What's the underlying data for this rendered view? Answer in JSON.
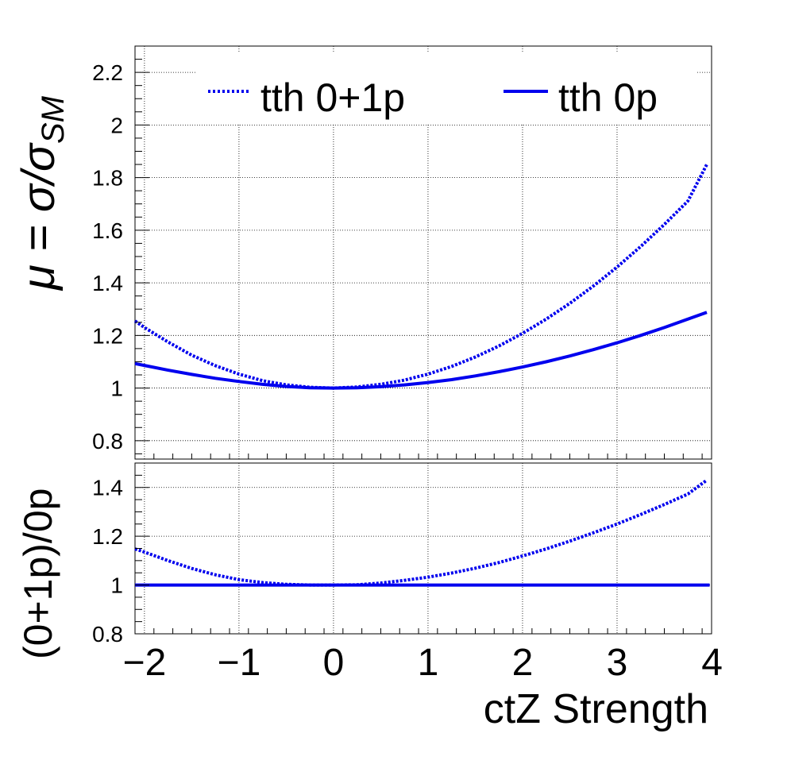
{
  "chart_data": [
    {
      "panel": "main",
      "type": "line",
      "ylabel": "μ = σ/σ_SM",
      "ylabel_main": "μ = σ/σ",
      "ylabel_sub": "SM",
      "xlim": [
        -2.1,
        4.0
      ],
      "ylim": [
        0.73,
        2.3
      ],
      "grid": true,
      "y_ticks": [
        0.8,
        1,
        1.2,
        1.4,
        1.6,
        1.8,
        2,
        2.2
      ],
      "y_tick_labels": [
        "0.8",
        "1",
        "1.2",
        "1.4",
        "1.6",
        "1.8",
        "2",
        "2.2"
      ],
      "legend_position": "top",
      "series": [
        {
          "name": "tth 0+1p",
          "style": "dotted",
          "color": "#0000ee",
          "x": [
            -2.1,
            -2.0,
            -1.75,
            -1.5,
            -1.25,
            -1.0,
            -0.75,
            -0.5,
            -0.25,
            0.0,
            0.25,
            0.5,
            0.75,
            1.0,
            1.25,
            1.5,
            1.75,
            2.0,
            2.25,
            2.5,
            2.75,
            3.0,
            3.25,
            3.5,
            3.75,
            3.95
          ],
          "y": [
            1.255,
            1.23,
            1.175,
            1.125,
            1.085,
            1.053,
            1.028,
            1.012,
            1.003,
            1.0,
            1.004,
            1.014,
            1.03,
            1.053,
            1.082,
            1.118,
            1.16,
            1.208,
            1.262,
            1.322,
            1.388,
            1.46,
            1.538,
            1.622,
            1.711,
            1.85
          ]
        },
        {
          "name": "tth 0p",
          "style": "solid",
          "color": "#0000ee",
          "x": [
            -2.1,
            -2.0,
            -1.75,
            -1.5,
            -1.25,
            -1.0,
            -0.75,
            -0.5,
            -0.25,
            0.0,
            0.25,
            0.5,
            0.75,
            1.0,
            1.25,
            1.5,
            1.75,
            2.0,
            2.25,
            2.5,
            2.75,
            3.0,
            3.25,
            3.5,
            3.75,
            3.95
          ],
          "y": [
            1.093,
            1.086,
            1.068,
            1.052,
            1.037,
            1.025,
            1.014,
            1.006,
            1.001,
            1.0,
            1.001,
            1.005,
            1.012,
            1.021,
            1.032,
            1.046,
            1.062,
            1.08,
            1.1,
            1.122,
            1.146,
            1.172,
            1.2,
            1.23,
            1.262,
            1.288
          ]
        }
      ]
    },
    {
      "panel": "ratio",
      "type": "line",
      "xlabel": "ctZ Strength",
      "ylabel": "(0+1p)/0p",
      "xlim": [
        -2.1,
        4.0
      ],
      "ylim": [
        0.8,
        1.5
      ],
      "grid": true,
      "x_ticks": [
        -2,
        -1,
        0,
        1,
        2,
        3,
        4
      ],
      "x_tick_labels": [
        "−2",
        "−1",
        "0",
        "1",
        "2",
        "3",
        "4"
      ],
      "y_ticks": [
        0.8,
        1,
        1.2,
        1.4
      ],
      "y_tick_labels": [
        "0.8",
        "1",
        "1.2",
        "1.4"
      ],
      "series": [
        {
          "style": "dotted",
          "color": "#0000ee",
          "x": [
            -2.1,
            -2.0,
            -1.75,
            -1.5,
            -1.25,
            -1.0,
            -0.75,
            -0.5,
            -0.25,
            0.0,
            0.25,
            0.5,
            0.75,
            1.0,
            1.25,
            1.5,
            1.75,
            2.0,
            2.25,
            2.5,
            2.75,
            3.0,
            3.25,
            3.5,
            3.75,
            3.95
          ],
          "y": [
            1.148,
            1.135,
            1.1,
            1.068,
            1.042,
            1.022,
            1.01,
            1.003,
            1.0,
            1.0,
            1.001,
            1.008,
            1.019,
            1.032,
            1.049,
            1.069,
            1.092,
            1.119,
            1.148,
            1.18,
            1.214,
            1.25,
            1.289,
            1.33,
            1.373,
            1.43
          ]
        },
        {
          "style": "solid",
          "color": "#0000ee",
          "x": [
            -2.1,
            3.98
          ],
          "y": [
            1.0,
            1.0
          ]
        }
      ]
    }
  ]
}
